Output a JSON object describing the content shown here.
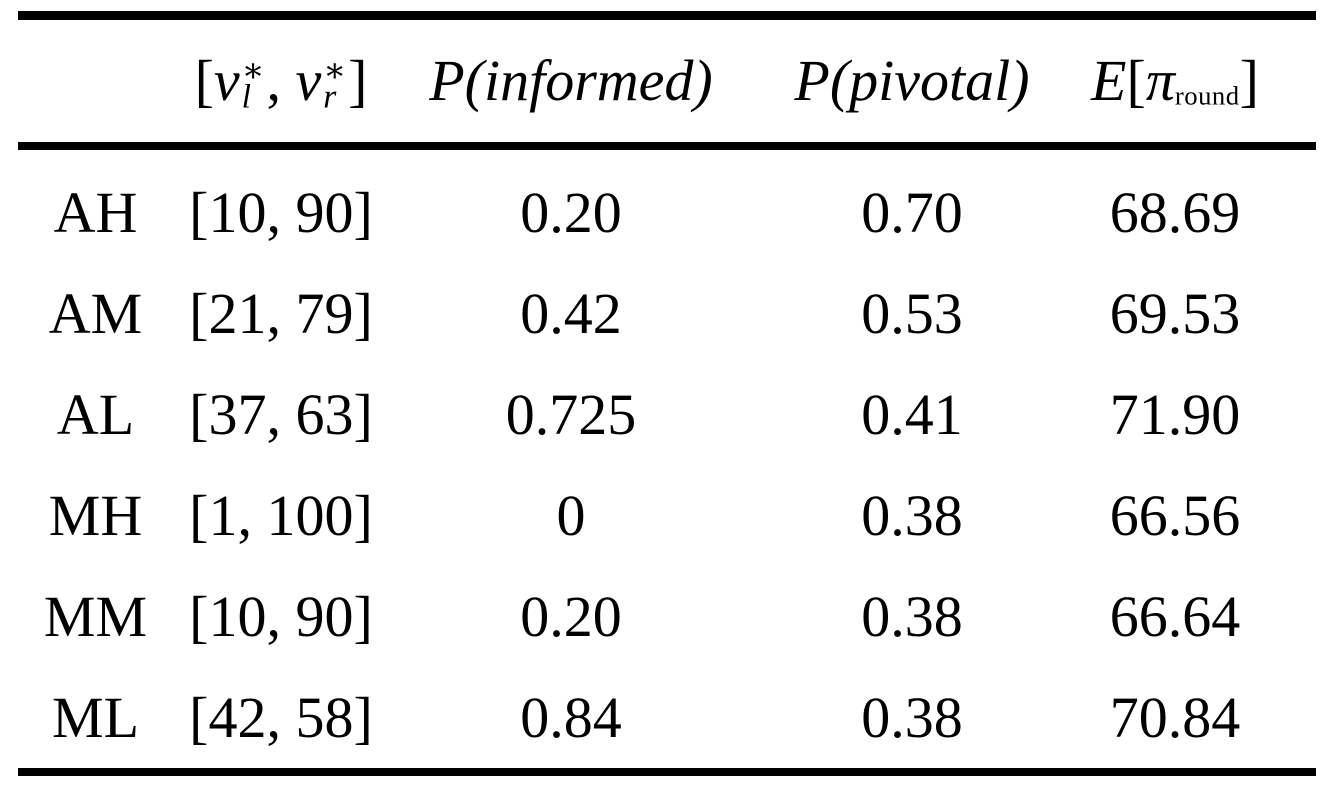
{
  "table": {
    "colors": {
      "text": "#000000",
      "background": "#ffffff",
      "rule": "#000000"
    },
    "header": {
      "row_label": "",
      "interval": {
        "open": "[",
        "v1": "v",
        "sup1": "∗",
        "sub1": "l",
        "comma": ", ",
        "v2": "v",
        "sup2": "∗",
        "sub2": "r",
        "close": "]"
      },
      "p_informed": "P(informed)",
      "p_pivotal": "P(pivotal)",
      "expected_profit": {
        "E": "E",
        "open": "[",
        "pi": "π",
        "sub": "round",
        "close": "]"
      }
    },
    "rows": [
      {
        "label": "AH",
        "interval": "[10, 90]",
        "p_informed": "0.20",
        "p_pivotal": "0.70",
        "expected_profit": "68.69"
      },
      {
        "label": "AM",
        "interval": "[21, 79]",
        "p_informed": "0.42",
        "p_pivotal": "0.53",
        "expected_profit": "69.53"
      },
      {
        "label": "AL",
        "interval": "[37, 63]",
        "p_informed": "0.725",
        "p_pivotal": "0.41",
        "expected_profit": "71.90"
      },
      {
        "label": "MH",
        "interval": "[1, 100]",
        "p_informed": "0",
        "p_pivotal": "0.38",
        "expected_profit": "66.56"
      },
      {
        "label": "MM",
        "interval": "[10, 90]",
        "p_informed": "0.20",
        "p_pivotal": "0.38",
        "expected_profit": "66.64"
      },
      {
        "label": "ML",
        "interval": "[42, 58]",
        "p_informed": "0.84",
        "p_pivotal": "0.38",
        "expected_profit": "70.84"
      }
    ]
  }
}
